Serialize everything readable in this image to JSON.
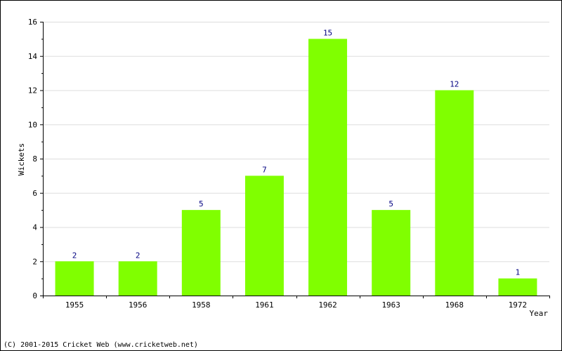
{
  "chart_data": {
    "type": "bar",
    "categories": [
      "1955",
      "1956",
      "1958",
      "1961",
      "1962",
      "1963",
      "1968",
      "1972"
    ],
    "values": [
      2,
      2,
      5,
      7,
      15,
      5,
      12,
      1
    ],
    "title": "",
    "xlabel": "Year",
    "ylabel": "Wickets",
    "ylim": [
      0,
      16
    ],
    "yticks": [
      0,
      2,
      4,
      6,
      8,
      10,
      12,
      14,
      16
    ],
    "grid": true,
    "data_labels": true,
    "colors": {
      "bar": "#80ff00",
      "grid": "#dddddd",
      "axis": "#000000",
      "data_label": "#000080"
    }
  },
  "footer": {
    "copyright": "(C) 2001-2015 Cricket Web (www.cricketweb.net)"
  }
}
